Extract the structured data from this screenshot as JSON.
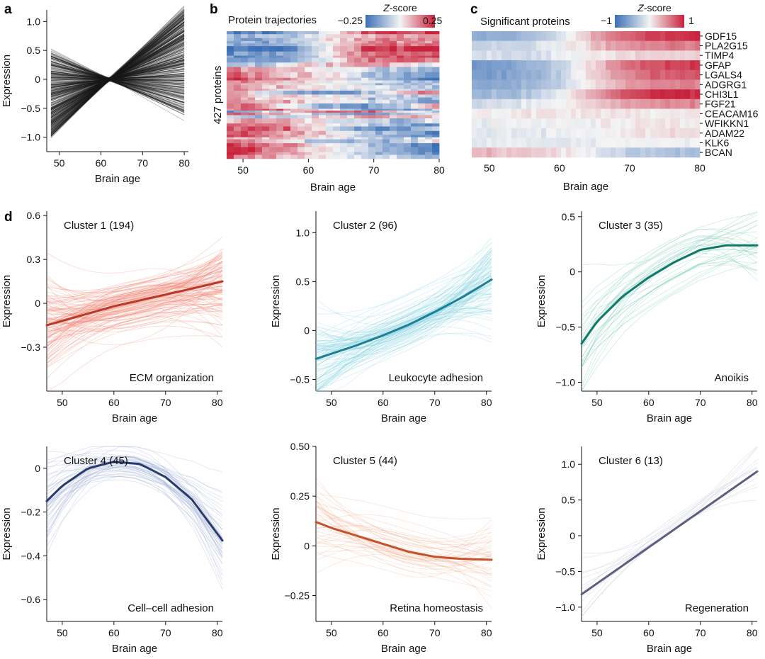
{
  "panels": {
    "a": "a",
    "b": "b",
    "c": "c",
    "d": "d"
  },
  "chart_data": [
    {
      "id": "a",
      "type": "line",
      "xlabel": "Brain age",
      "ylabel": "Expression",
      "xlim": [
        47,
        81
      ],
      "ylim": [
        -1.25,
        1.2
      ],
      "xticks": [
        50,
        60,
        70,
        80
      ],
      "yticks": [
        1.0,
        0.5,
        0,
        -0.5,
        -1.0
      ],
      "xtick_labels": [
        "50",
        "60",
        "70",
        "80"
      ],
      "ytick_labels": [
        "1.0",
        "0.5",
        "0",
        "−0.5",
        "−1.0"
      ],
      "series_summary": {
        "x": [
          48,
          62,
          80
        ],
        "y_at_48_range": [
          -1.0,
          0.45
        ],
        "y_at_62": 0.0,
        "y_at_80_range": [
          -0.6,
          1.2
        ]
      },
      "color": "#1a1a1a"
    },
    {
      "id": "b",
      "type": "heatmap",
      "title": "Protein trajectories",
      "ylabel": "427 proteins",
      "xlabel": "Brain age",
      "xticks": [
        50,
        60,
        70,
        80
      ],
      "xtick_labels": [
        "50",
        "60",
        "70",
        "80"
      ],
      "colorbar": {
        "label": "Z-score",
        "min_label": "−0.25",
        "max_label": "0.25",
        "min": -0.25,
        "max": 0.25
      },
      "rows": 427,
      "colors": {
        "low": "#3b6fb6",
        "mid": "#f4f4f4",
        "high": "#c8213a"
      }
    },
    {
      "id": "c",
      "type": "heatmap",
      "title": "Significant proteins",
      "xlabel": "Brain age",
      "xticks": [
        50,
        60,
        70,
        80
      ],
      "xtick_labels": [
        "50",
        "60",
        "70",
        "80"
      ],
      "colorbar": {
        "label": "Z-score",
        "min_label": "−1",
        "max_label": "1",
        "min": -1,
        "max": 1
      },
      "rows": [
        "GDF15",
        "PLA2G15",
        "TIMP4",
        "GFAP",
        "LGALS4",
        "ADGRG1",
        "CHI3L1",
        "FGF21",
        "CEACAM16",
        "WFIKKN1",
        "ADAM22",
        "KLK6",
        "BCAN"
      ],
      "row_profiles": [
        [
          -0.6,
          1.0
        ],
        [
          -0.3,
          0.6
        ],
        [
          -0.2,
          0.2
        ],
        [
          -0.7,
          0.9
        ],
        [
          -0.7,
          0.8
        ],
        [
          -0.6,
          0.6
        ],
        [
          -0.5,
          1.0
        ],
        [
          -0.2,
          0.5
        ],
        [
          0.05,
          0.05
        ],
        [
          -0.05,
          0.05
        ],
        [
          -0.1,
          0.1
        ],
        [
          -0.1,
          0.0
        ],
        [
          0.3,
          -0.4
        ]
      ],
      "colors": {
        "low": "#3b6fb6",
        "mid": "#f4f4f4",
        "high": "#c8213a"
      }
    },
    {
      "id": "d1",
      "type": "line",
      "title": "Cluster 1 (194)",
      "annotation": "ECM organization",
      "xlabel": "Brain age",
      "ylabel": "Expression",
      "xlim": [
        47,
        81
      ],
      "ylim": [
        -0.6,
        0.63
      ],
      "xticks": [
        50,
        60,
        70,
        80
      ],
      "yticks": [
        0.6,
        0.3,
        0,
        -0.3
      ],
      "xtick_labels": [
        "50",
        "60",
        "70",
        "80"
      ],
      "ytick_labels": [
        "0.6",
        "0.3",
        "0",
        "−0.3"
      ],
      "mean_line": {
        "x": [
          47,
          55,
          60,
          65,
          70,
          75,
          81
        ],
        "y": [
          -0.15,
          -0.07,
          -0.02,
          0.02,
          0.06,
          0.1,
          0.15
        ]
      },
      "n_members": 194,
      "color": "#b83a2a",
      "member_color": "#f08070",
      "annotation_color": "#e06a55"
    },
    {
      "id": "d2",
      "type": "line",
      "title": "Cluster 2 (96)",
      "annotation": "Leukocyte adhesion",
      "xlabel": "Brain age",
      "ylabel": "Expression",
      "xlim": [
        47,
        81
      ],
      "ylim": [
        -0.62,
        1.22
      ],
      "xticks": [
        50,
        60,
        70,
        80
      ],
      "yticks": [
        1.0,
        0.5,
        0,
        -0.5
      ],
      "xtick_labels": [
        "50",
        "60",
        "70",
        "80"
      ],
      "ytick_labels": [
        "1.0",
        "0.5",
        "0",
        "−0.5"
      ],
      "mean_line": {
        "x": [
          47,
          55,
          60,
          65,
          70,
          75,
          81
        ],
        "y": [
          -0.29,
          -0.15,
          -0.05,
          0.06,
          0.19,
          0.33,
          0.52
        ]
      },
      "n_members": 96,
      "color": "#1f7f96",
      "member_color": "#7fd0e0",
      "annotation_color": "#5cc0d4"
    },
    {
      "id": "d3",
      "type": "line",
      "title": "Cluster 3 (35)",
      "annotation": "Anoikis",
      "xlabel": "Brain age",
      "ylabel": "Expression",
      "xlim": [
        47,
        81
      ],
      "ylim": [
        -1.08,
        0.55
      ],
      "xticks": [
        50,
        60,
        70,
        80
      ],
      "yticks": [
        0.5,
        0,
        -0.5,
        -1.0
      ],
      "xtick_labels": [
        "50",
        "60",
        "70",
        "80"
      ],
      "ytick_labels": [
        "0.5",
        "0",
        "−0.5",
        "−1.0"
      ],
      "mean_line": {
        "x": [
          47,
          50,
          55,
          60,
          65,
          70,
          75,
          81
        ],
        "y": [
          -0.65,
          -0.45,
          -0.22,
          -0.05,
          0.09,
          0.2,
          0.24,
          0.24
        ]
      },
      "n_members": 35,
      "color": "#12786a",
      "member_color": "#66c2a8",
      "annotation_color": "#1e9c82"
    },
    {
      "id": "d4",
      "type": "line",
      "title": "Cluster 4 (45)",
      "annotation": "Cell–cell adhesion",
      "xlabel": "Brain age",
      "ylabel": "Expression",
      "xlim": [
        47,
        81
      ],
      "ylim": [
        -0.7,
        0.1
      ],
      "xticks": [
        50,
        60,
        70,
        80
      ],
      "yticks": [
        0,
        -0.2,
        -0.4,
        -0.6
      ],
      "xtick_labels": [
        "50",
        "60",
        "70",
        "80"
      ],
      "ytick_labels": [
        "0",
        "−0.2",
        "−0.4",
        "−0.6"
      ],
      "mean_line": {
        "x": [
          47,
          50,
          55,
          60,
          65,
          70,
          75,
          81
        ],
        "y": [
          -0.15,
          -0.08,
          0.0,
          0.03,
          0.02,
          -0.04,
          -0.14,
          -0.33
        ]
      },
      "n_members": 45,
      "color": "#283b6b",
      "member_color": "#8fa0cc",
      "annotation_color": "#4a5c8e"
    },
    {
      "id": "d5",
      "type": "line",
      "title": "Cluster 5 (44)",
      "annotation": "Retina homeostasis",
      "xlabel": "Brain age",
      "ylabel": "Expression",
      "xlim": [
        47,
        81
      ],
      "ylim": [
        -0.38,
        0.5
      ],
      "xticks": [
        50,
        60,
        70,
        80
      ],
      "yticks": [
        0.5,
        0.25,
        0,
        -0.25
      ],
      "xtick_labels": [
        "50",
        "60",
        "70",
        "80"
      ],
      "ytick_labels": [
        "0.50",
        "0.25",
        "0",
        "−0.25"
      ],
      "mean_line": {
        "x": [
          47,
          50,
          55,
          60,
          65,
          70,
          75,
          81
        ],
        "y": [
          0.12,
          0.09,
          0.05,
          0.01,
          -0.03,
          -0.055,
          -0.065,
          -0.07
        ]
      },
      "n_members": 44,
      "color": "#c4532a",
      "member_color": "#f2a888",
      "annotation_color": "#f0a080"
    },
    {
      "id": "d6",
      "type": "line",
      "title": "Cluster 6 (13)",
      "annotation": "Regeneration",
      "xlabel": "Brain age",
      "ylabel": "Expression",
      "xlim": [
        47,
        81
      ],
      "ylim": [
        -1.2,
        1.25
      ],
      "xticks": [
        50,
        60,
        70,
        80
      ],
      "yticks": [
        1.0,
        0.5,
        0,
        -0.5,
        -1.0
      ],
      "xtick_labels": [
        "50",
        "60",
        "70",
        "80"
      ],
      "ytick_labels": [
        "1.0",
        "0.5",
        "0",
        "−0.5",
        "−1.0"
      ],
      "mean_line": {
        "x": [
          47,
          81
        ],
        "y": [
          -0.82,
          0.9
        ]
      },
      "n_members": 13,
      "color": "#5a5f82",
      "member_color": "#b0b4cc",
      "annotation_color": "#8a8fb0"
    }
  ]
}
